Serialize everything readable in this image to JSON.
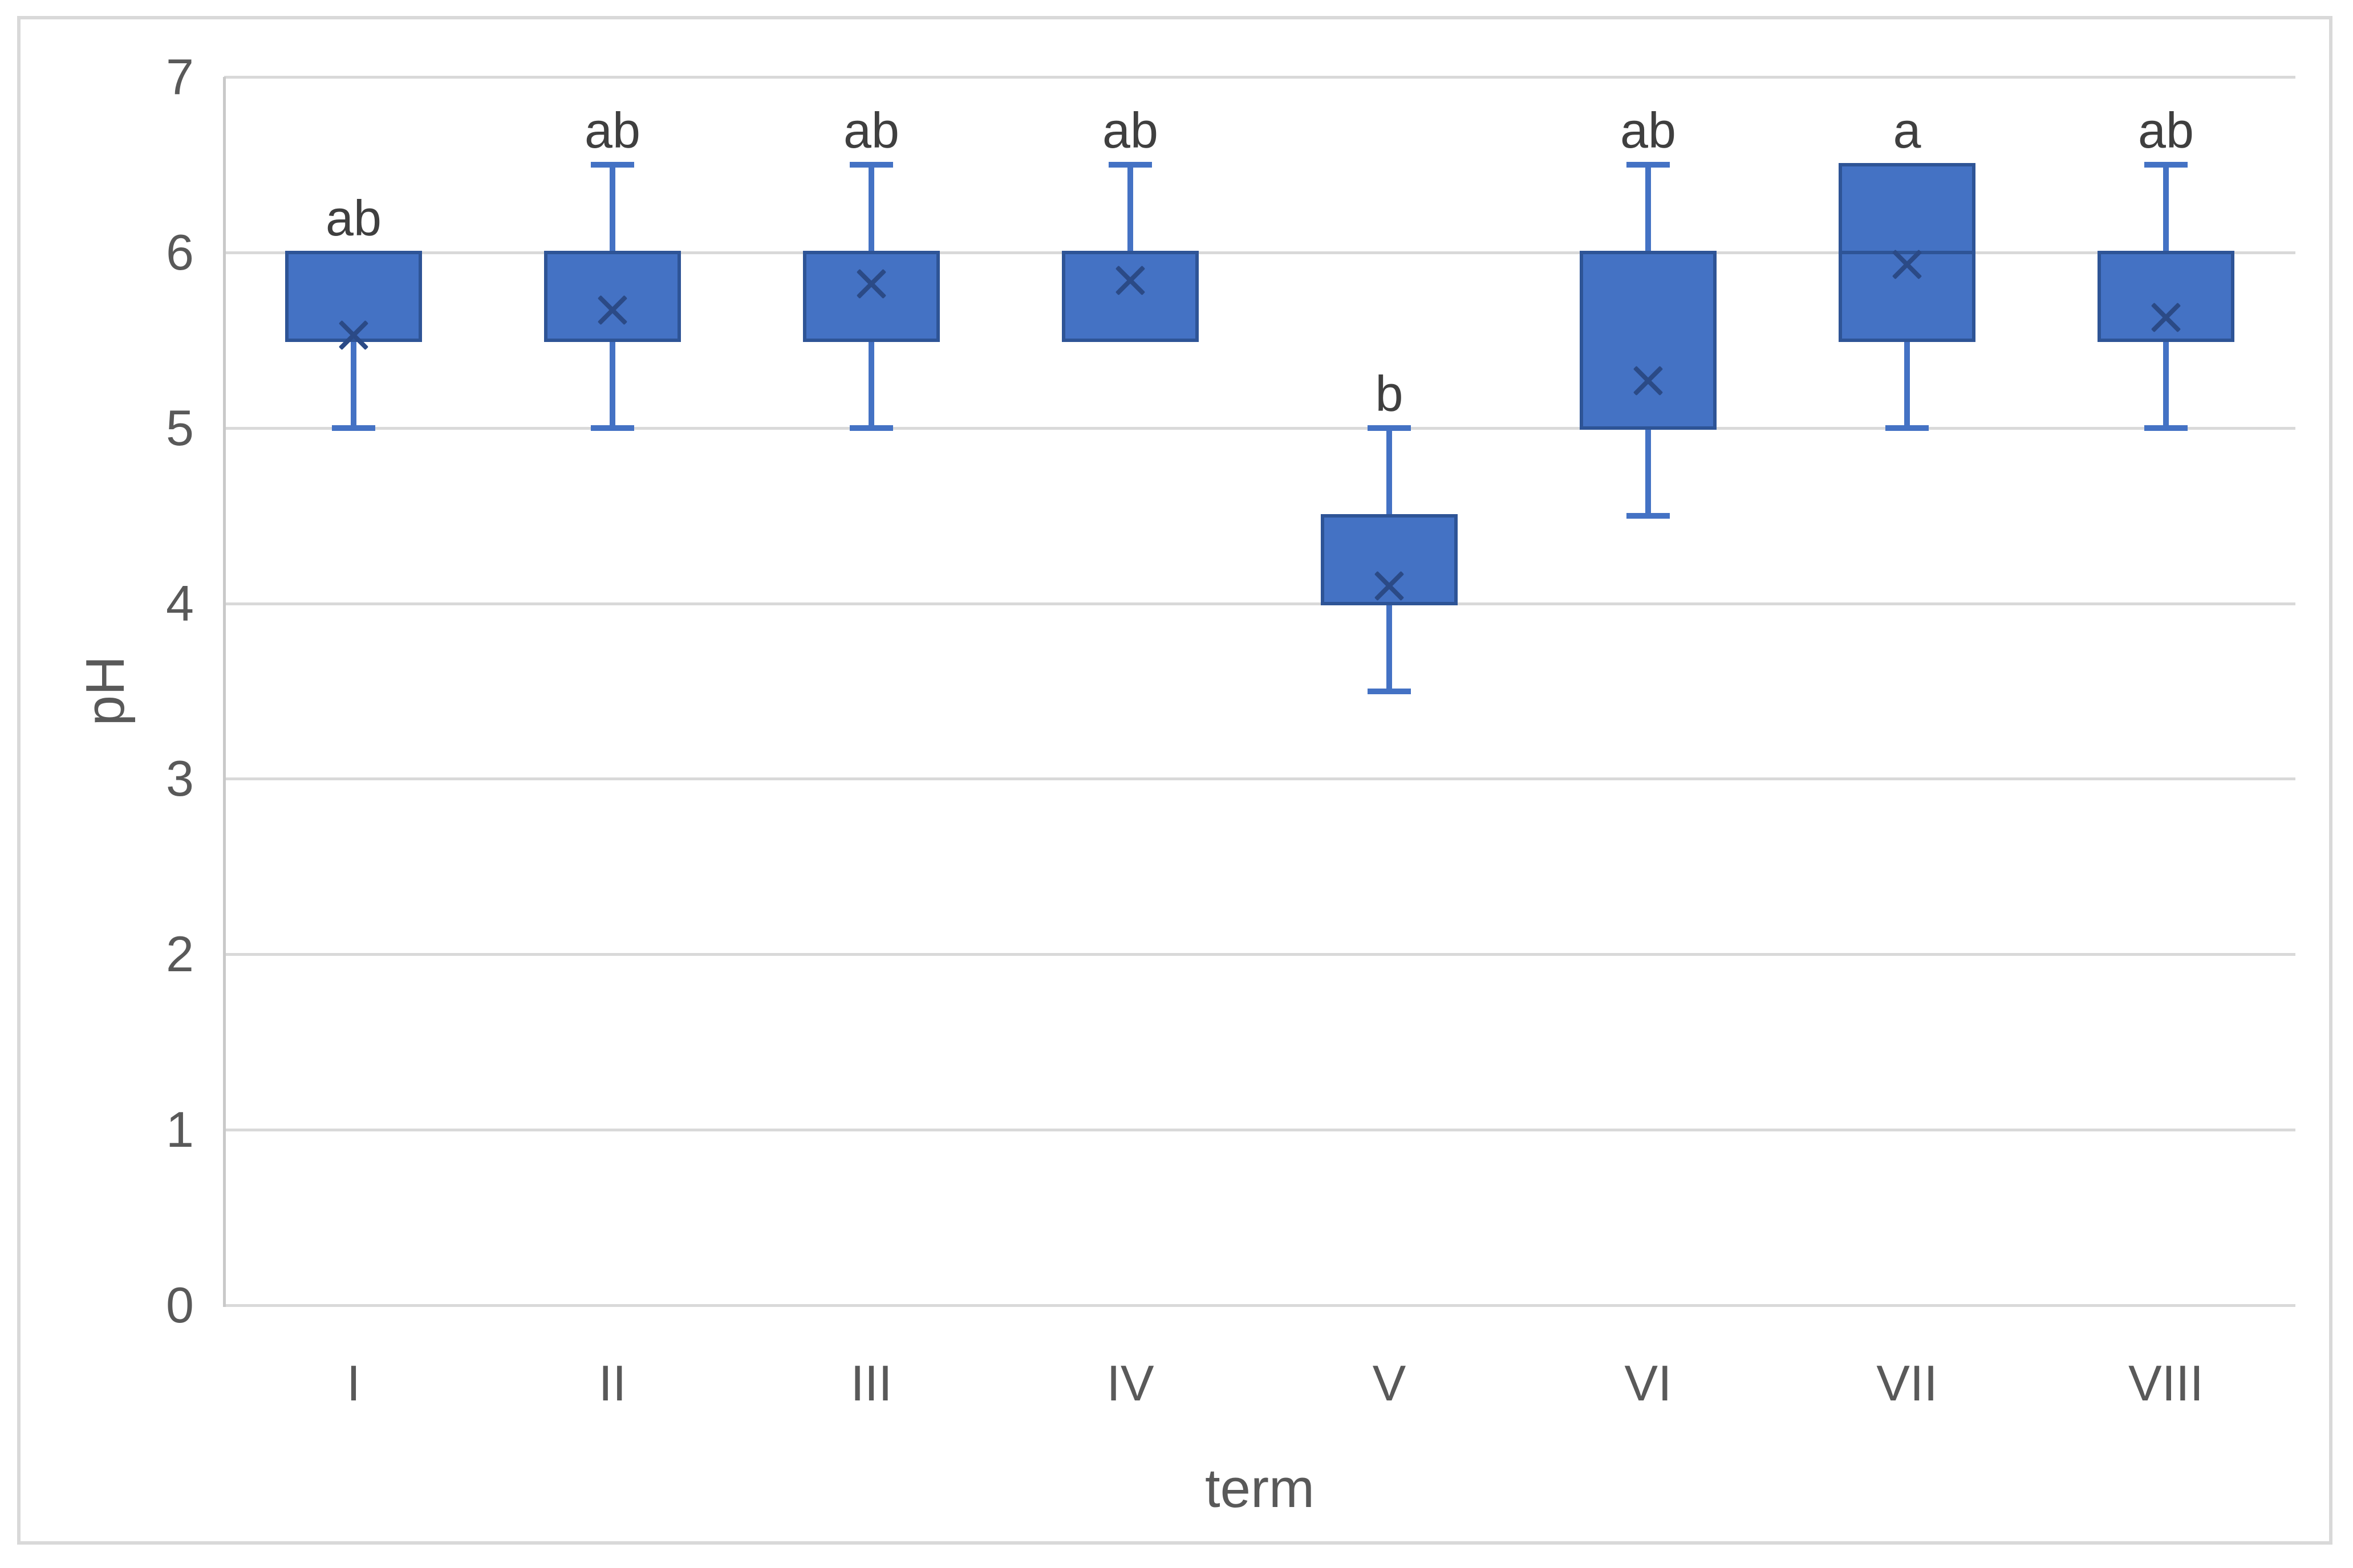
{
  "chart_data": {
    "type": "boxplot",
    "title": "",
    "xlabel": "term",
    "ylabel": "pH",
    "ylim": [
      0,
      7
    ],
    "yticks": [
      0,
      1,
      2,
      3,
      4,
      5,
      6,
      7
    ],
    "categories": [
      "I",
      "II",
      "III",
      "IV",
      "V",
      "VI",
      "VII",
      "VIII"
    ],
    "grid": "horizontal-major",
    "legend_position": "none",
    "boxes": [
      {
        "category": "I",
        "whisker_low": 5.0,
        "q1": 5.5,
        "median": null,
        "q3": 6.0,
        "whisker_high": null,
        "mean": 5.53,
        "sig_label": "ab"
      },
      {
        "category": "II",
        "whisker_low": 5.0,
        "q1": 5.5,
        "median": null,
        "q3": 6.0,
        "whisker_high": 6.5,
        "mean": 5.67,
        "sig_label": "ab"
      },
      {
        "category": "III",
        "whisker_low": 5.0,
        "q1": 5.5,
        "median": null,
        "q3": 6.0,
        "whisker_high": 6.5,
        "mean": 5.82,
        "sig_label": "ab"
      },
      {
        "category": "IV",
        "whisker_low": null,
        "q1": 5.5,
        "median": null,
        "q3": 6.0,
        "whisker_high": 6.5,
        "mean": 5.84,
        "sig_label": "ab"
      },
      {
        "category": "V",
        "whisker_low": 3.5,
        "q1": 4.0,
        "median": null,
        "q3": 4.5,
        "whisker_high": 5.0,
        "mean": 4.1,
        "sig_label": "b"
      },
      {
        "category": "VI",
        "whisker_low": 4.5,
        "q1": 5.0,
        "median": null,
        "q3": 6.0,
        "whisker_high": 6.5,
        "mean": 5.27,
        "sig_label": "ab"
      },
      {
        "category": "VII",
        "whisker_low": 5.0,
        "q1": 5.5,
        "median": 6.0,
        "q3": 6.5,
        "whisker_high": null,
        "mean": 5.93,
        "sig_label": "a"
      },
      {
        "category": "VIII",
        "whisker_low": 5.0,
        "q1": 5.5,
        "median": null,
        "q3": 6.0,
        "whisker_high": 6.5,
        "mean": 5.63,
        "sig_label": "ab"
      }
    ],
    "colors": {
      "box_fill": "#4472C4",
      "box_border": "#2E5496",
      "whisker": "#4472C4",
      "mean_marker": "#2B4A86",
      "median_line": "#2E5496",
      "gridline": "#D9D9D9",
      "axis_line": "#C9C9C9",
      "tick_text": "#595959",
      "sig_text": "#3F3F3F",
      "chart_border": "#D9D9D9",
      "background": "#FFFFFF"
    }
  }
}
